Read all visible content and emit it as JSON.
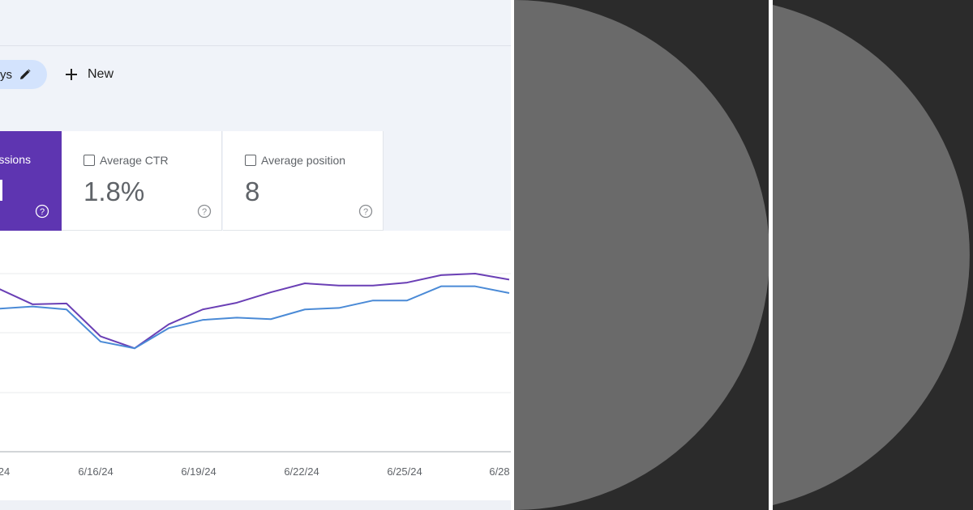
{
  "toolbar": {
    "date_chip_label": "ys",
    "new_label": "New"
  },
  "metrics": {
    "impressions": {
      "label": "ssions"
    },
    "ctr": {
      "label": "Average CTR",
      "value": "1.8%"
    },
    "position": {
      "label": "Average position",
      "value": "8"
    }
  },
  "chart_data": {
    "type": "line",
    "x_tick_labels": [
      "24",
      "6/16/24",
      "6/19/24",
      "6/22/24",
      "6/25/24",
      "6/28"
    ],
    "series": [
      {
        "color": "#6a3fb5",
        "values": [
          83,
          62,
          63,
          19,
          3,
          35,
          55,
          64,
          78,
          90,
          87,
          87,
          91,
          101,
          103,
          95
        ]
      },
      {
        "color": "#4a8ad6",
        "values": [
          56,
          59,
          55,
          12,
          3,
          30,
          41,
          44,
          42,
          55,
          57,
          67,
          67,
          86,
          86,
          77
        ]
      }
    ],
    "grid": true
  },
  "colors": {
    "accent": "#5e35b1",
    "chip": "#d3e3fd",
    "panel_background": "#2b2b2b",
    "circle": "#6a6a6a"
  }
}
